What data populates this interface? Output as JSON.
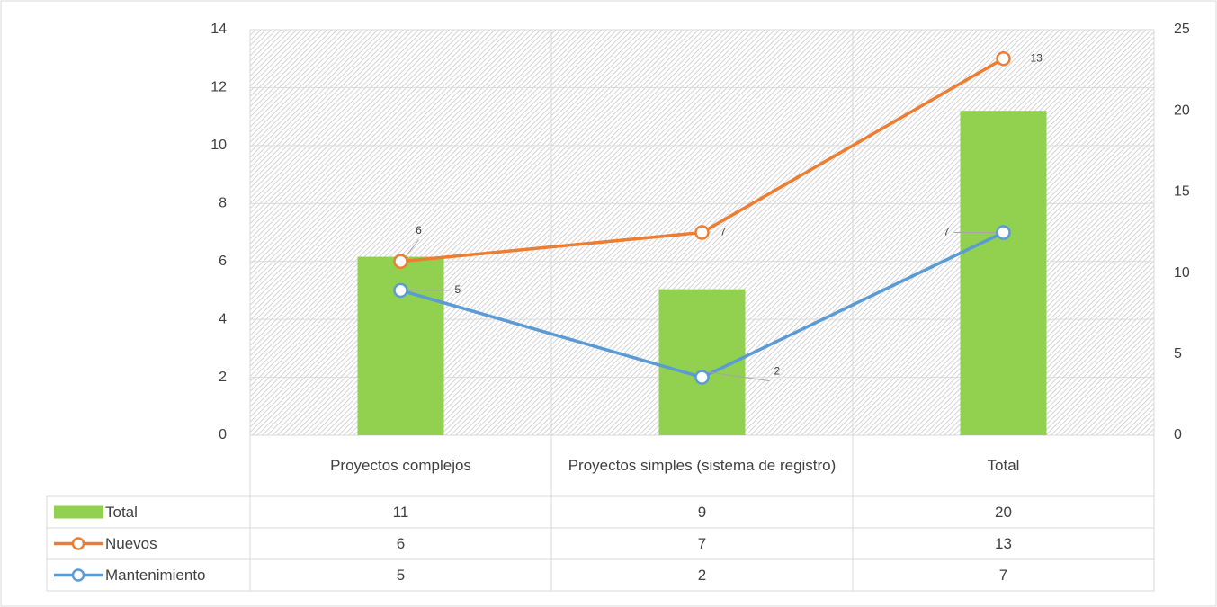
{
  "chart_data": {
    "type": "bar",
    "categories": [
      "Proyectos complejos",
      "Proyectos simples (sistema de registro)",
      "Total"
    ],
    "series": [
      {
        "name": "Total",
        "type": "bar",
        "axis": "y2",
        "color": "#92d050",
        "values": [
          11,
          9,
          20
        ]
      },
      {
        "name": "Nuevos",
        "type": "line",
        "color": "#ed7d31",
        "values": [
          6,
          7,
          13
        ]
      },
      {
        "name": "Mantenimiento",
        "type": "line",
        "color": "#5b9bd5",
        "values": [
          5,
          2,
          7
        ]
      }
    ],
    "ylim": [
      0,
      14
    ],
    "yticks": [
      0,
      2,
      4,
      6,
      8,
      10,
      12,
      14
    ],
    "y2lim": [
      0,
      25
    ],
    "y2ticks": [
      0,
      5,
      10,
      15,
      20,
      25
    ],
    "grid": true,
    "data_table": true
  }
}
